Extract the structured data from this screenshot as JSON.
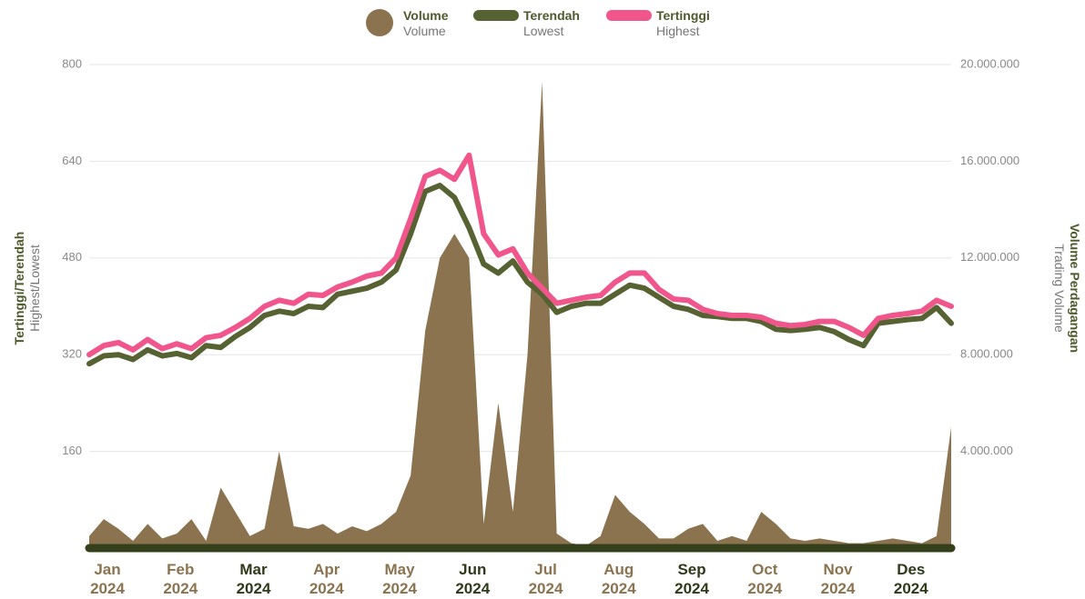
{
  "chart_data": {
    "type": "dual-axis",
    "y_label": "Tertinggi/Terendah",
    "y_label_sub": "Highest/Lowest",
    "y2_label": "Volume Perdagangan",
    "y2_label_sub": "Trading Volume",
    "categories": [
      "Jan 2024",
      null,
      null,
      null,
      null,
      "Feb 2024",
      null,
      null,
      null,
      null,
      "Mar 2024",
      null,
      null,
      null,
      null,
      "Apr 2024",
      null,
      null,
      null,
      null,
      "May 2024",
      null,
      null,
      null,
      null,
      "Jun 2024",
      null,
      null,
      null,
      null,
      "Jul 2024",
      null,
      null,
      null,
      null,
      "Aug 2024",
      null,
      null,
      null,
      null,
      "Sep 2024",
      null,
      null,
      null,
      null,
      "Oct 2024",
      null,
      null,
      null,
      null,
      "Nov 2024",
      null,
      null,
      null,
      null,
      "Des 2024",
      null,
      null,
      null,
      null
    ],
    "ylim": [
      0,
      800
    ],
    "yticks": [
      160,
      320,
      480,
      640,
      800
    ],
    "y2lim": [
      0,
      20000000
    ],
    "y2ticks": [
      {
        "value": 4000000,
        "label": "4.000.000"
      },
      {
        "value": 8000000,
        "label": "8.000.000"
      },
      {
        "value": 12000000,
        "label": "12.000.000"
      },
      {
        "value": 16000000,
        "label": "16.000.000"
      },
      {
        "value": 20000000,
        "label": "20.000.000"
      }
    ],
    "grid": true,
    "series": [
      {
        "name": "Volume",
        "subname": "Volume",
        "kind": "area",
        "axis": "y2",
        "color": "#8b7350",
        "values": [
          500000,
          1200000,
          800000,
          300000,
          1000000,
          400000,
          600000,
          1200000,
          300000,
          2500000,
          1500000,
          500000,
          800000,
          4000000,
          900000,
          800000,
          1000000,
          600000,
          900000,
          700000,
          1000000,
          1500000,
          3000000,
          9000000,
          12000000,
          13000000,
          12000000,
          1000000,
          6000000,
          1500000,
          8000000,
          19300000,
          600000,
          200000,
          100000,
          500000,
          2200000,
          1500000,
          1000000,
          400000,
          400000,
          800000,
          1000000,
          300000,
          500000,
          300000,
          1500000,
          1000000,
          400000,
          300000,
          400000,
          300000,
          200000,
          200000,
          300000,
          400000,
          300000,
          200000,
          500000,
          5000000
        ]
      },
      {
        "name": "Terendah",
        "subname": "Lowest",
        "kind": "line",
        "axis": "y",
        "color": "#566232",
        "values": [
          305,
          318,
          320,
          312,
          328,
          318,
          322,
          315,
          335,
          332,
          350,
          365,
          385,
          392,
          388,
          400,
          398,
          420,
          425,
          430,
          440,
          460,
          520,
          590,
          600,
          580,
          530,
          470,
          455,
          475,
          440,
          420,
          390,
          400,
          405,
          405,
          420,
          435,
          430,
          415,
          400,
          395,
          385,
          383,
          380,
          380,
          375,
          362,
          360,
          362,
          365,
          358,
          345,
          335,
          372,
          375,
          378,
          380,
          398,
          372
        ]
      },
      {
        "name": "Tertinggi",
        "subname": "Highest",
        "kind": "line",
        "axis": "y",
        "color": "#f0568c",
        "values": [
          320,
          335,
          340,
          328,
          345,
          330,
          338,
          330,
          348,
          352,
          365,
          380,
          400,
          410,
          405,
          420,
          418,
          432,
          440,
          450,
          455,
          480,
          545,
          615,
          625,
          610,
          650,
          520,
          485,
          495,
          455,
          430,
          405,
          410,
          415,
          418,
          440,
          455,
          455,
          428,
          412,
          410,
          395,
          388,
          385,
          385,
          382,
          372,
          368,
          370,
          375,
          375,
          365,
          352,
          380,
          385,
          388,
          392,
          410,
          400
        ]
      }
    ]
  }
}
